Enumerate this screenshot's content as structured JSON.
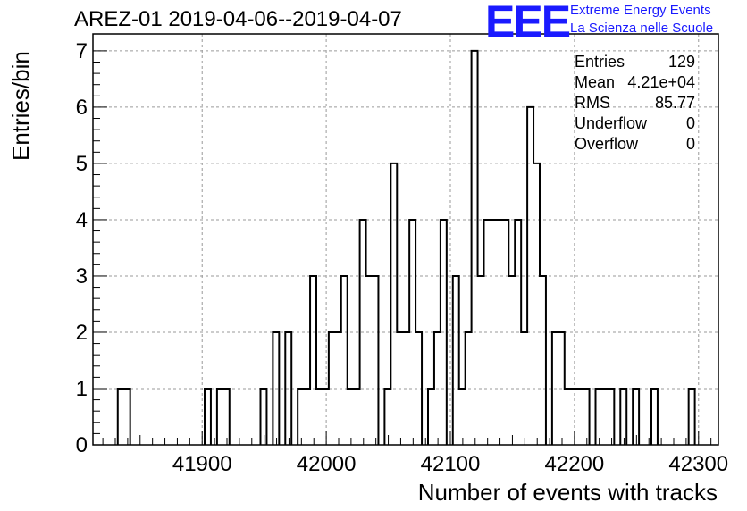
{
  "chart_data": {
    "type": "histogram",
    "title": "AREZ-01 2019-04-06--2019-04-07",
    "xlabel": "Number of events with tracks",
    "ylabel": "Entries/bin",
    "xlim": [
      41812,
      42316
    ],
    "ylim": [
      0,
      7.3
    ],
    "bin_width": 5,
    "x_ticks": [
      41900,
      42000,
      42100,
      42200,
      42300
    ],
    "y_ticks": [
      0,
      1,
      2,
      3,
      4,
      5,
      6,
      7
    ],
    "grid": true,
    "bins": [
      {
        "x": 41832,
        "count": 1
      },
      {
        "x": 41837,
        "count": 1
      },
      {
        "x": 41902,
        "count": 1
      },
      {
        "x": 41912,
        "count": 1
      },
      {
        "x": 41917,
        "count": 1
      },
      {
        "x": 41947,
        "count": 1
      },
      {
        "x": 41957,
        "count": 2
      },
      {
        "x": 41967,
        "count": 2
      },
      {
        "x": 41977,
        "count": 1
      },
      {
        "x": 41982,
        "count": 1
      },
      {
        "x": 41987,
        "count": 3
      },
      {
        "x": 41992,
        "count": 1
      },
      {
        "x": 41997,
        "count": 1
      },
      {
        "x": 42002,
        "count": 2
      },
      {
        "x": 42007,
        "count": 2
      },
      {
        "x": 42012,
        "count": 3
      },
      {
        "x": 42017,
        "count": 1
      },
      {
        "x": 42022,
        "count": 1
      },
      {
        "x": 42027,
        "count": 4
      },
      {
        "x": 42032,
        "count": 3
      },
      {
        "x": 42037,
        "count": 3
      },
      {
        "x": 42047,
        "count": 1
      },
      {
        "x": 42052,
        "count": 5
      },
      {
        "x": 42057,
        "count": 2
      },
      {
        "x": 42062,
        "count": 2
      },
      {
        "x": 42067,
        "count": 4
      },
      {
        "x": 42072,
        "count": 2
      },
      {
        "x": 42082,
        "count": 1
      },
      {
        "x": 42087,
        "count": 2
      },
      {
        "x": 42092,
        "count": 4
      },
      {
        "x": 42102,
        "count": 3
      },
      {
        "x": 42107,
        "count": 1
      },
      {
        "x": 42112,
        "count": 2
      },
      {
        "x": 42117,
        "count": 7
      },
      {
        "x": 42122,
        "count": 3
      },
      {
        "x": 42127,
        "count": 4
      },
      {
        "x": 42132,
        "count": 4
      },
      {
        "x": 42137,
        "count": 4
      },
      {
        "x": 42142,
        "count": 4
      },
      {
        "x": 42147,
        "count": 3
      },
      {
        "x": 42152,
        "count": 4
      },
      {
        "x": 42157,
        "count": 2
      },
      {
        "x": 42162,
        "count": 6
      },
      {
        "x": 42167,
        "count": 5
      },
      {
        "x": 42172,
        "count": 3
      },
      {
        "x": 42182,
        "count": 2
      },
      {
        "x": 42187,
        "count": 2
      },
      {
        "x": 42192,
        "count": 1
      },
      {
        "x": 42197,
        "count": 1
      },
      {
        "x": 42202,
        "count": 1
      },
      {
        "x": 42207,
        "count": 1
      },
      {
        "x": 42217,
        "count": 1
      },
      {
        "x": 42222,
        "count": 1
      },
      {
        "x": 42227,
        "count": 1
      },
      {
        "x": 42237,
        "count": 1
      },
      {
        "x": 42247,
        "count": 1
      },
      {
        "x": 42262,
        "count": 1
      },
      {
        "x": 42292,
        "count": 1
      }
    ],
    "line_color": "#000000",
    "grid_color": "#9a9a9a"
  },
  "stats": [
    {
      "label": "Entries",
      "value": "129"
    },
    {
      "label": "Mean",
      "value": "4.21e+04"
    },
    {
      "label": "RMS",
      "value": "85.77"
    },
    {
      "label": "Underflow",
      "value": "0"
    },
    {
      "label": "Overflow",
      "value": "0"
    }
  ],
  "logo": {
    "mark": "EEE",
    "line1": "Extreme Energy Events",
    "line2": "La Scienza nelle Scuole",
    "color": "#1a1aff"
  }
}
